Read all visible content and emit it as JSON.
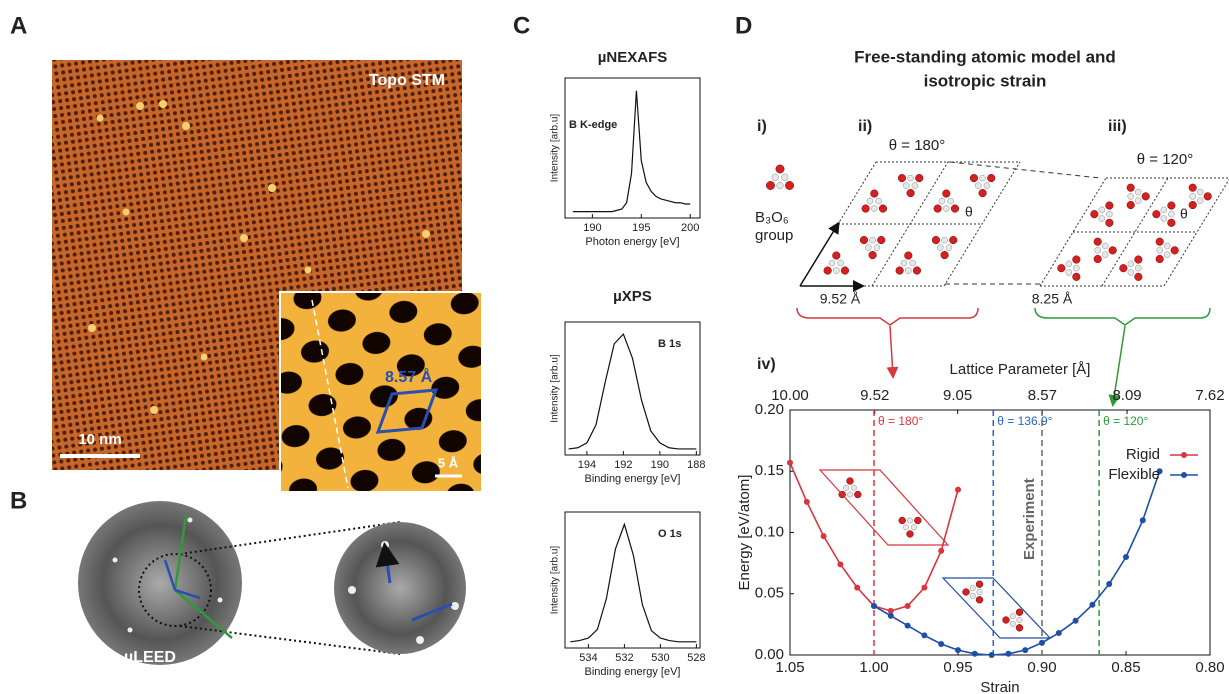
{
  "figure": {
    "panel_labels": [
      "A",
      "B",
      "C",
      "D"
    ],
    "A": {
      "tag": "Topo STM",
      "scale": "10 nm",
      "inset_scale": "5 Å",
      "lattice": "8.57 Å"
    },
    "B": {
      "caption": "µLEED"
    },
    "D": {
      "title": [
        "Free-standing atomic model and",
        "isotropic strain"
      ],
      "steps": [
        "i)",
        "ii)",
        "iii)",
        "iv)"
      ],
      "group": [
        "B₃O₆",
        "group"
      ],
      "angles": [
        "θ = 180°",
        "θ = 120°"
      ],
      "theta": "θ",
      "spacings": [
        "9.52 Å",
        "8.25 Å"
      ]
    }
  },
  "chart_data": [
    {
      "type": "line",
      "title": "µNEXAFS",
      "annotation": "B K-edge",
      "ylabel": "Intensity [arb.u]",
      "xlabel": "Photon energy [eV]",
      "xlim": [
        187.2,
        201
      ],
      "xticks": [
        190,
        195,
        200
      ],
      "ylim": [
        0,
        1.1
      ],
      "color": "#111111",
      "x": [
        188,
        188.5,
        189,
        189.5,
        190,
        190.5,
        191,
        191.5,
        192,
        192.5,
        193,
        193.5,
        194,
        194.5,
        195,
        195.5,
        196,
        196.5,
        197,
        197.5,
        198,
        198.5,
        199,
        199.5,
        200
      ],
      "values": [
        0.05,
        0.05,
        0.05,
        0.05,
        0.05,
        0.05,
        0.05,
        0.05,
        0.05,
        0.06,
        0.07,
        0.12,
        0.35,
        1.0,
        0.45,
        0.28,
        0.21,
        0.17,
        0.15,
        0.14,
        0.13,
        0.12,
        0.12,
        0.11,
        0.11
      ]
    },
    {
      "type": "line",
      "title": "µXPS",
      "annotation": "B 1s",
      "ylabel": "Intensity [arb.u]",
      "xlabel": "Binding energy [eV]",
      "xlim": [
        195.2,
        187.8
      ],
      "xticks": [
        194,
        192,
        190,
        188
      ],
      "ylim": [
        0,
        1.1
      ],
      "color": "#111111",
      "x": [
        195,
        194.5,
        194,
        193.5,
        193,
        192.5,
        192,
        191.5,
        191,
        190.5,
        190,
        189.5,
        189,
        188.5,
        188
      ],
      "values": [
        0.05,
        0.06,
        0.1,
        0.25,
        0.6,
        0.92,
        1.0,
        0.8,
        0.45,
        0.2,
        0.1,
        0.06,
        0.05,
        0.05,
        0.05
      ]
    },
    {
      "type": "line",
      "annotation": "O 1s",
      "ylabel": "Intensity [arb.u]",
      "xlabel": "Binding energy [eV]",
      "xlim": [
        535.3,
        527.8
      ],
      "xticks": [
        534,
        532,
        530,
        528
      ],
      "ylim": [
        0,
        1.1
      ],
      "color": "#111111",
      "x": [
        535,
        534.5,
        534,
        533.5,
        533,
        532.5,
        532,
        531.5,
        531,
        530.5,
        530,
        529.5,
        529,
        528.5,
        528
      ],
      "values": [
        0.05,
        0.06,
        0.08,
        0.15,
        0.4,
        0.8,
        1.0,
        0.75,
        0.35,
        0.14,
        0.08,
        0.06,
        0.05,
        0.05,
        0.05
      ]
    },
    {
      "type": "line",
      "ylabel": "Energy  [eV/atom]",
      "xlabel": "Strain",
      "x2label": "Lattice Parameter  [Å]",
      "xlim": [
        1.05,
        0.8
      ],
      "xticks": [
        1.05,
        {
          "value": 1,
          "label": "1.00"
        },
        0.95,
        {
          "value": 0.9,
          "label": "0.90"
        },
        0.85,
        {
          "value": 0.8,
          "label": "0.80"
        }
      ],
      "x2lim": [
        10,
        7.62
      ],
      "x2ticks": [
        {
          "value": 10,
          "label": "10.00"
        },
        9.52,
        9.05,
        8.57,
        8.09,
        7.62
      ],
      "ylim": [
        0,
        0.2
      ],
      "yticks": [
        {
          "value": 0,
          "label": "0.00"
        },
        0.05,
        {
          "value": 0.1,
          "label": "0.10"
        },
        0.15,
        {
          "value": 0.2,
          "label": "0.20"
        }
      ],
      "legend": "upper right",
      "series": [
        {
          "name": "Rigid",
          "color": "#d9363e",
          "x": [
            1.05,
            1.04,
            1.03,
            1.02,
            1.01,
            1.0,
            0.99,
            0.98,
            0.97,
            0.96,
            0.95
          ],
          "values": [
            0.157,
            0.125,
            0.097,
            0.074,
            0.055,
            0.04,
            0.036,
            0.04,
            0.055,
            0.085,
            0.135
          ]
        },
        {
          "name": "Flexible",
          "color": "#1f4fa8",
          "x": [
            1.0,
            0.99,
            0.98,
            0.97,
            0.96,
            0.95,
            0.94,
            0.93,
            0.92,
            0.91,
            0.9,
            0.89,
            0.88,
            0.87,
            0.86,
            0.85,
            0.84,
            0.83
          ],
          "values": [
            0.04,
            0.032,
            0.024,
            0.016,
            0.009,
            0.004,
            0.001,
            0.0,
            0.001,
            0.004,
            0.01,
            0.018,
            0.028,
            0.041,
            0.058,
            0.08,
            0.11,
            0.15
          ]
        }
      ],
      "annotations": [
        {
          "x": 1.0,
          "label": "θ = 180°",
          "color": "#d9363e"
        },
        {
          "x": 0.929,
          "label": "θ = 136.9°",
          "color": "#2a62c9"
        },
        {
          "x": 0.9,
          "label": "Experiment",
          "color": "#666666"
        },
        {
          "x": 0.866,
          "label": "θ = 120°",
          "color": "#2e9a3a"
        }
      ]
    }
  ]
}
